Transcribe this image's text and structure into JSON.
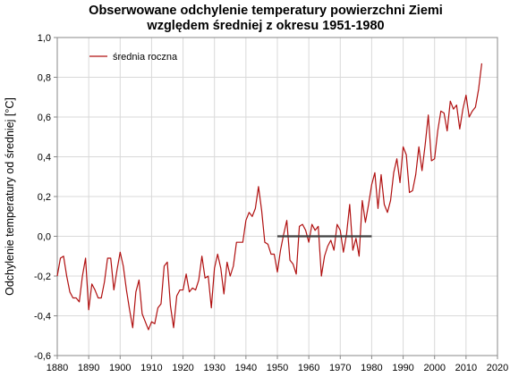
{
  "chart_data": {
    "type": "line",
    "title": "Obserwowane odchylenie temperatury powierzchni Ziemi",
    "subtitle": "względem średniej z okresu 1951-1980",
    "xlabel": "",
    "ylabel": "Odchylenie temperatury od średniej [°C]",
    "xlim": [
      1880,
      2020
    ],
    "ylim": [
      -0.6,
      1.0
    ],
    "x_ticks": [
      1880,
      1890,
      1900,
      1910,
      1920,
      1930,
      1940,
      1950,
      1960,
      1970,
      1980,
      1990,
      2000,
      2010,
      2020
    ],
    "y_ticks": [
      -0.6,
      -0.4,
      -0.2,
      0.0,
      0.2,
      0.4,
      0.6,
      0.8,
      1.0
    ],
    "y_tick_labels": [
      "-0,6",
      "-0,4",
      "-0,2",
      "0,0",
      "0,2",
      "0,4",
      "0,6",
      "0,8",
      "1,0"
    ],
    "grid": true,
    "legend_position": "top-left",
    "series": [
      {
        "name": "średnia roczna",
        "color": "#b01010",
        "x": [
          1880,
          1881,
          1882,
          1883,
          1884,
          1885,
          1886,
          1887,
          1888,
          1889,
          1890,
          1891,
          1892,
          1893,
          1894,
          1895,
          1896,
          1897,
          1898,
          1899,
          1900,
          1901,
          1902,
          1903,
          1904,
          1905,
          1906,
          1907,
          1908,
          1909,
          1910,
          1911,
          1912,
          1913,
          1914,
          1915,
          1916,
          1917,
          1918,
          1919,
          1920,
          1921,
          1922,
          1923,
          1924,
          1925,
          1926,
          1927,
          1928,
          1929,
          1930,
          1931,
          1932,
          1933,
          1934,
          1935,
          1936,
          1937,
          1938,
          1939,
          1940,
          1941,
          1942,
          1943,
          1944,
          1945,
          1946,
          1947,
          1948,
          1949,
          1950,
          1951,
          1952,
          1953,
          1954,
          1955,
          1956,
          1957,
          1958,
          1959,
          1960,
          1961,
          1962,
          1963,
          1964,
          1965,
          1966,
          1967,
          1968,
          1969,
          1970,
          1971,
          1972,
          1973,
          1974,
          1975,
          1976,
          1977,
          1978,
          1979,
          1980,
          1981,
          1982,
          1983,
          1984,
          1985,
          1986,
          1987,
          1988,
          1989,
          1990,
          1991,
          1992,
          1993,
          1994,
          1995,
          1996,
          1997,
          1998,
          1999,
          2000,
          2001,
          2002,
          2003,
          2004,
          2005,
          2006,
          2007,
          2008,
          2009,
          2010,
          2011,
          2012,
          2013,
          2014,
          2015
        ],
        "values": [
          -0.2,
          -0.11,
          -0.1,
          -0.2,
          -0.28,
          -0.31,
          -0.31,
          -0.33,
          -0.2,
          -0.11,
          -0.37,
          -0.24,
          -0.27,
          -0.31,
          -0.31,
          -0.23,
          -0.11,
          -0.11,
          -0.27,
          -0.17,
          -0.08,
          -0.15,
          -0.27,
          -0.37,
          -0.46,
          -0.28,
          -0.22,
          -0.39,
          -0.43,
          -0.47,
          -0.43,
          -0.44,
          -0.36,
          -0.34,
          -0.15,
          -0.13,
          -0.35,
          -0.46,
          -0.3,
          -0.27,
          -0.27,
          -0.19,
          -0.28,
          -0.26,
          -0.27,
          -0.22,
          -0.1,
          -0.21,
          -0.2,
          -0.36,
          -0.16,
          -0.09,
          -0.16,
          -0.29,
          -0.13,
          -0.2,
          -0.15,
          -0.03,
          -0.03,
          -0.03,
          0.08,
          0.12,
          0.1,
          0.14,
          0.25,
          0.13,
          -0.03,
          -0.04,
          -0.09,
          -0.09,
          -0.18,
          -0.07,
          0.01,
          0.08,
          -0.12,
          -0.14,
          -0.19,
          0.05,
          0.06,
          0.03,
          -0.03,
          0.06,
          0.03,
          0.05,
          -0.2,
          -0.1,
          -0.05,
          -0.02,
          -0.07,
          0.06,
          0.03,
          -0.08,
          0.01,
          0.16,
          -0.07,
          -0.01,
          -0.1,
          0.18,
          0.07,
          0.16,
          0.26,
          0.32,
          0.14,
          0.31,
          0.16,
          0.12,
          0.18,
          0.32,
          0.39,
          0.27,
          0.45,
          0.41,
          0.22,
          0.23,
          0.31,
          0.45,
          0.33,
          0.46,
          0.61,
          0.38,
          0.39,
          0.53,
          0.63,
          0.62,
          0.53,
          0.68,
          0.64,
          0.66,
          0.54,
          0.64,
          0.71,
          0.6,
          0.63,
          0.65,
          0.74,
          0.87
        ]
      },
      {
        "name": "",
        "color": "#404040",
        "x": [
          1950,
          1980
        ],
        "values": [
          0.0,
          0.0
        ]
      }
    ]
  }
}
